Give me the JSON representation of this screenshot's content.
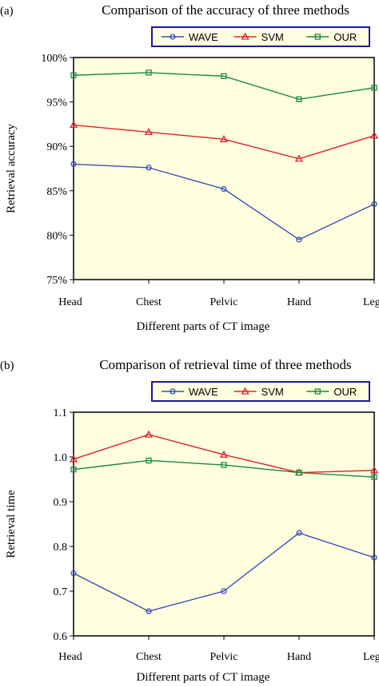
{
  "colors": {
    "WAVE": "#3a4fb8",
    "SVM": "#e0202a",
    "OUR": "#1a8a3a",
    "plot_bg": "#ffffe0",
    "legend_bg": "#ffffe0",
    "legend_border": "#1a1aa0"
  },
  "chart_data": [
    {
      "type": "line",
      "panel_label": "(a)",
      "title": "Comparison of the accuracy of three methods",
      "xlabel": "Different parts of CT image",
      "ylabel": "Retrieval accuracy",
      "categories": [
        "Head",
        "Chest",
        "Pelvic",
        "Hand",
        "Leg"
      ],
      "ylim": [
        75,
        100
      ],
      "yticks": [
        75,
        80,
        85,
        90,
        95,
        100
      ],
      "ytick_labels": [
        "75%",
        "80%",
        "85%",
        "90%",
        "95%",
        "100%"
      ],
      "legend": "top-right",
      "series": [
        {
          "name": "WAVE",
          "marker": "circle",
          "values": [
            88.0,
            87.6,
            85.2,
            79.5,
            83.5
          ]
        },
        {
          "name": "SVM",
          "marker": "triangle",
          "values": [
            92.4,
            91.6,
            90.8,
            88.6,
            91.2
          ]
        },
        {
          "name": "OUR",
          "marker": "square",
          "values": [
            98.0,
            98.3,
            97.9,
            95.3,
            96.6
          ]
        }
      ]
    },
    {
      "type": "line",
      "panel_label": "(b)",
      "title": "Comparison of retrieval time of three methods",
      "xlabel": "Different parts of CT image",
      "ylabel": "Retrieval time",
      "categories": [
        "Head",
        "Chest",
        "Pelvic",
        "Hand",
        "Leg"
      ],
      "ylim": [
        0.6,
        1.1
      ],
      "yticks": [
        0.6,
        0.7,
        0.8,
        0.9,
        1.0,
        1.1
      ],
      "ytick_labels": [
        "0.6",
        "0.7",
        "0.8",
        "0.9",
        "1.0",
        "1.1"
      ],
      "legend": "top-right",
      "series": [
        {
          "name": "WAVE",
          "marker": "circle",
          "values": [
            0.74,
            0.655,
            0.7,
            0.83,
            0.775
          ]
        },
        {
          "name": "SVM",
          "marker": "triangle",
          "values": [
            0.995,
            1.05,
            1.005,
            0.965,
            0.97
          ]
        },
        {
          "name": "OUR",
          "marker": "square",
          "values": [
            0.972,
            0.992,
            0.982,
            0.965,
            0.955
          ]
        }
      ]
    }
  ]
}
